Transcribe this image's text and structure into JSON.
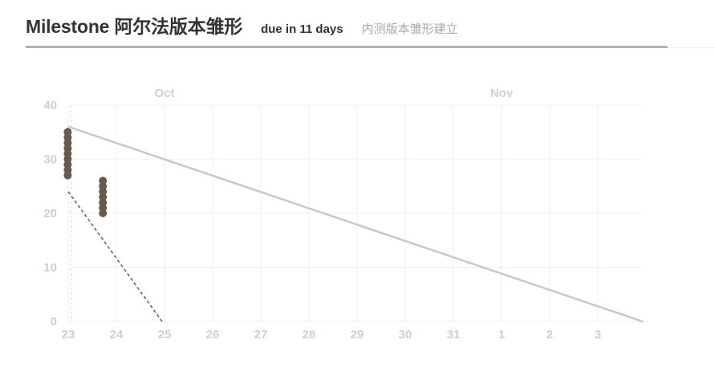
{
  "header": {
    "title": "Milestone 阿尔法版本雏形",
    "due": "due in 11 days",
    "description": "内测版本雏形建立"
  },
  "chart_data": {
    "type": "line",
    "title": "",
    "xlabel": "",
    "ylabel": "",
    "ylim": [
      0,
      40
    ],
    "y_ticks": [
      0,
      10,
      20,
      30,
      40
    ],
    "x_ticks": [
      "23",
      "24",
      "25",
      "26",
      "27",
      "28",
      "29",
      "30",
      "31",
      "1",
      "2",
      "3"
    ],
    "x_range_days": [
      23,
      34.93
    ],
    "months": [
      {
        "label": "Oct",
        "day": 25
      },
      {
        "label": "Nov",
        "day": 32
      }
    ],
    "grid": true,
    "ideal_line": {
      "x": [
        23,
        34.93
      ],
      "y": [
        36,
        0
      ],
      "color": "#c8c8c8"
    },
    "projection_line": {
      "x": [
        23,
        24.95
      ],
      "y": [
        24,
        0
      ],
      "color": "#666666",
      "dashed": true
    },
    "today_marker": {
      "day": 23.06
    },
    "actual_points": [
      {
        "x": 22.99,
        "y": 35
      },
      {
        "x": 22.99,
        "y": 34
      },
      {
        "x": 22.99,
        "y": 33
      },
      {
        "x": 22.99,
        "y": 32
      },
      {
        "x": 22.99,
        "y": 31
      },
      {
        "x": 22.99,
        "y": 30
      },
      {
        "x": 22.99,
        "y": 29
      },
      {
        "x": 22.99,
        "y": 28
      },
      {
        "x": 22.99,
        "y": 27
      },
      {
        "x": 23.72,
        "y": 26
      },
      {
        "x": 23.72,
        "y": 25
      },
      {
        "x": 23.72,
        "y": 24
      },
      {
        "x": 23.72,
        "y": 23
      },
      {
        "x": 23.72,
        "y": 22
      },
      {
        "x": 23.72,
        "y": 21
      },
      {
        "x": 23.72,
        "y": 20
      }
    ],
    "point_color": "#675a4e",
    "grid_color": "#f1f1f1",
    "axis_color": "#cfcfcf"
  }
}
